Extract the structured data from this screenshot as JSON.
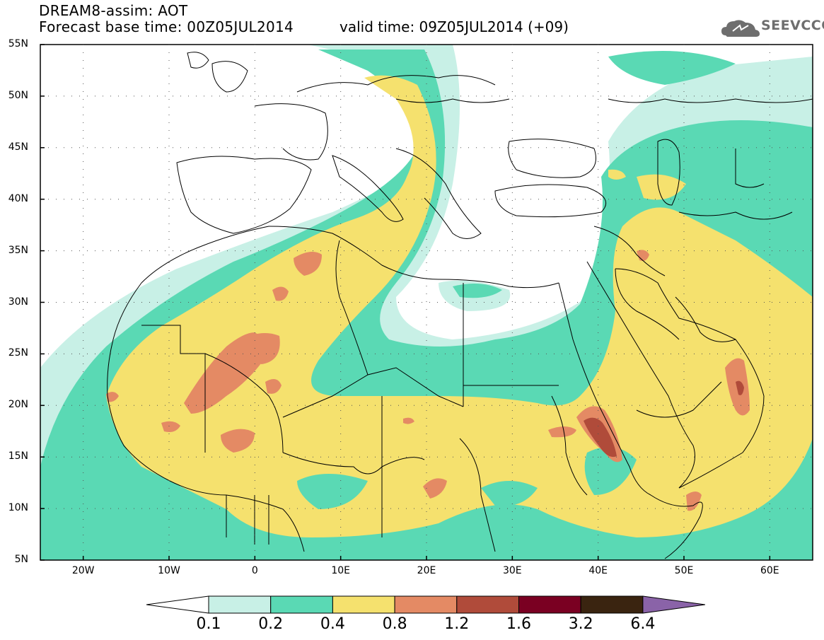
{
  "header": {
    "title_line1": "DREAM8-assim: AOT",
    "title_line2": "Forecast base time: 00Z05JUL2014",
    "valid_time": "valid time: 09Z05JUL2014 (+09)",
    "logo_text": "SEEVCCC"
  },
  "axes": {
    "lat_labels": [
      "55N",
      "50N",
      "45N",
      "40N",
      "35N",
      "30N",
      "25N",
      "20N",
      "15N",
      "10N",
      "5N"
    ],
    "lon_labels": [
      "20W",
      "10W",
      "0",
      "10E",
      "20E",
      "30E",
      "40E",
      "50E",
      "60E"
    ]
  },
  "legend": {
    "levels": [
      "0.1",
      "0.2",
      "0.4",
      "0.8",
      "1.2",
      "1.6",
      "3.2",
      "6.4"
    ],
    "colors": [
      "#c8f0e6",
      "#5ad9b4",
      "#f5e16e",
      "#e48a64",
      "#b04b3a",
      "#7a0022",
      "#3a2410",
      "#8a63a8"
    ],
    "under_color": "#ffffff",
    "over_color": "#8a63a8"
  },
  "colors": {
    "class_0_1": "#c8f0e6",
    "class_0_2": "#5ad9b4",
    "class_0_4": "#f5e16e",
    "class_0_8": "#e48a64",
    "class_1_2": "#b04b3a",
    "class_1_6": "#7a0022"
  }
}
